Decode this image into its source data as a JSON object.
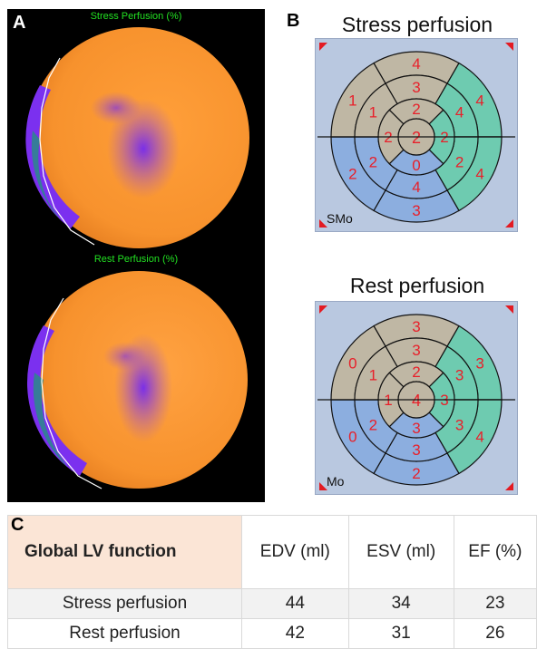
{
  "panels": {
    "a_label": "A",
    "b_label": "B",
    "c_label": "C"
  },
  "polar_maps": {
    "stress_title": "Stress Perfusion (%)",
    "rest_title": "Rest Perfusion (%)"
  },
  "bullseye": {
    "stress": {
      "title": "Stress perfusion",
      "corner_label": "SMo",
      "scores": {
        "outer": [
          "4",
          "4",
          "4",
          "3",
          "2",
          "1"
        ],
        "middle": [
          "3",
          "4",
          "2",
          "4",
          "2",
          "1"
        ],
        "inner": [
          "2",
          "2",
          "0",
          "2"
        ],
        "apex": "2"
      }
    },
    "rest": {
      "title": "Rest perfusion",
      "corner_label": "Mo",
      "scores": {
        "outer": [
          "3",
          "3",
          "4",
          "2",
          "0",
          "0"
        ],
        "middle": [
          "3",
          "3",
          "3",
          "3",
          "2",
          "1"
        ],
        "inner": [
          "2",
          "3",
          "3",
          "1"
        ],
        "apex": "4"
      }
    }
  },
  "table": {
    "headers": [
      "Global LV function",
      "EDV (ml)",
      "ESV (ml)",
      "EF (%)"
    ],
    "rows": [
      [
        "Stress perfusion",
        "44",
        "34",
        "23"
      ],
      [
        "Rest perfusion",
        "42",
        "31",
        "26"
      ]
    ]
  },
  "colors": {
    "tan": "#bfb7a4",
    "blue": "#8caedf",
    "teal": "#6ecbb0",
    "score_red": "#e8202a",
    "frame": "#b9c8e0",
    "header_peach": "#fbe5d6"
  }
}
